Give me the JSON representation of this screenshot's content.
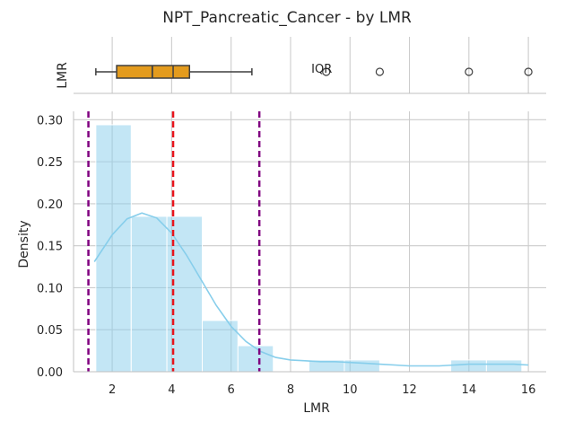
{
  "chart_data": {
    "type": "histogram",
    "title": "NPT_Pancreatic_Cancer - by LMR",
    "xlabel": "LMR",
    "ylabel": "Density",
    "xlim": [
      0.7,
      16.6
    ],
    "ylim": [
      0,
      0.31
    ],
    "grid": true,
    "xticks": [
      {
        "value": 2,
        "label": "2"
      },
      {
        "value": 4,
        "label": "4"
      },
      {
        "value": 6,
        "label": "6"
      },
      {
        "value": 8,
        "label": "8"
      },
      {
        "value": 10,
        "label": "10"
      },
      {
        "value": 12,
        "label": "12"
      },
      {
        "value": 14,
        "label": "14"
      },
      {
        "value": 16,
        "label": "16"
      }
    ],
    "yticks": [
      {
        "value": 0,
        "label": "0.00"
      },
      {
        "value": 0.05,
        "label": "0.05"
      },
      {
        "value": 0.1,
        "label": "0.10"
      },
      {
        "value": 0.15,
        "label": "0.15"
      },
      {
        "value": 0.2,
        "label": "0.20"
      },
      {
        "value": 0.25,
        "label": "0.25"
      },
      {
        "value": 0.3,
        "label": "0.30"
      }
    ],
    "bins": [
      {
        "x0": 1.45,
        "x1": 2.64,
        "density": 0.294
      },
      {
        "x0": 2.64,
        "x1": 3.84,
        "density": 0.185
      },
      {
        "x0": 3.84,
        "x1": 5.03,
        "density": 0.185
      },
      {
        "x0": 5.03,
        "x1": 6.23,
        "density": 0.061
      },
      {
        "x0": 6.23,
        "x1": 7.42,
        "density": 0.031
      },
      {
        "x0": 7.42,
        "x1": 8.62,
        "density": 0.0
      },
      {
        "x0": 8.62,
        "x1": 9.81,
        "density": 0.014
      },
      {
        "x0": 9.81,
        "x1": 11.0,
        "density": 0.014
      },
      {
        "x0": 11.0,
        "x1": 12.2,
        "density": 0.0
      },
      {
        "x0": 12.2,
        "x1": 13.39,
        "density": 0.0
      },
      {
        "x0": 13.39,
        "x1": 14.59,
        "density": 0.014
      },
      {
        "x0": 14.59,
        "x1": 15.78,
        "density": 0.014
      }
    ],
    "kde": {
      "x": [
        1.4,
        2.0,
        2.5,
        3.0,
        3.5,
        4.0,
        4.5,
        5.0,
        5.5,
        6.0,
        6.5,
        7.0,
        7.5,
        8.0,
        8.5,
        9.0,
        9.5,
        10.0,
        10.5,
        11.0,
        11.5,
        12.0,
        12.5,
        13.0,
        13.5,
        14.0,
        14.5,
        15.0,
        15.5,
        16.0
      ],
      "y": [
        0.131,
        0.163,
        0.182,
        0.189,
        0.183,
        0.165,
        0.139,
        0.109,
        0.079,
        0.054,
        0.036,
        0.024,
        0.017,
        0.014,
        0.013,
        0.012,
        0.012,
        0.011,
        0.01,
        0.009,
        0.008,
        0.007,
        0.007,
        0.007,
        0.008,
        0.009,
        0.009,
        0.009,
        0.009,
        0.008
      ]
    },
    "reference_lines": [
      {
        "x": 1.2,
        "color": "#800080"
      },
      {
        "x": 4.05,
        "color": "#e8141c"
      },
      {
        "x": 6.95,
        "color": "#800080"
      }
    ],
    "boxplot": {
      "axis_label": "LMR",
      "whisker_low": 1.45,
      "q1": 2.15,
      "median": 3.35,
      "q3": 4.6,
      "whisker_high": 6.7,
      "marker": 4.05,
      "outliers": [
        9.2,
        11.0,
        14.0,
        16.0
      ],
      "annotation": {
        "text": "IQR",
        "x": 8.7
      }
    },
    "colors": {
      "bars": "#87ceeb",
      "kde": "#87ceeb",
      "box": "#e39b1d",
      "grid": "#cccccc",
      "axis": "#c0c0c0"
    }
  }
}
